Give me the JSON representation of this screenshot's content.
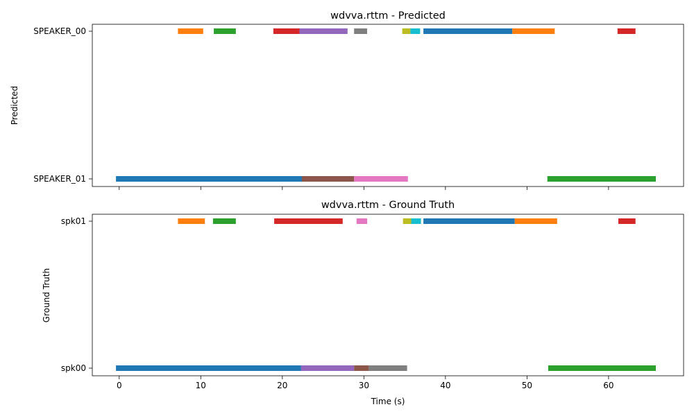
{
  "xlabel": "Time (s)",
  "x_ticks": [
    0,
    10,
    20,
    30,
    40,
    50,
    60
  ],
  "xlim": [
    -3.3,
    69.2
  ],
  "palette": {
    "blue": "#1f77b4",
    "orange": "#ff7f0e",
    "green": "#2ca02c",
    "red": "#d62728",
    "purple": "#9467bd",
    "brown": "#8c564b",
    "pink": "#e377c2",
    "gray": "#7f7f7f",
    "olive": "#bcbd22",
    "cyan": "#17becf"
  },
  "chart_data": [
    {
      "type": "timeline",
      "title": "wdvva.rttm - Predicted",
      "ylabel": "Predicted",
      "speakers": [
        "SPEAKER_00",
        "SPEAKER_01"
      ],
      "segments": [
        {
          "speaker": "SPEAKER_00",
          "start": 7.2,
          "end": 10.3,
          "color": "orange"
        },
        {
          "speaker": "SPEAKER_00",
          "start": 11.6,
          "end": 14.3,
          "color": "green"
        },
        {
          "speaker": "SPEAKER_00",
          "start": 18.9,
          "end": 22.1,
          "color": "red"
        },
        {
          "speaker": "SPEAKER_00",
          "start": 22.1,
          "end": 28.0,
          "color": "purple"
        },
        {
          "speaker": "SPEAKER_00",
          "start": 28.8,
          "end": 30.4,
          "color": "gray"
        },
        {
          "speaker": "SPEAKER_00",
          "start": 34.7,
          "end": 35.7,
          "color": "olive"
        },
        {
          "speaker": "SPEAKER_00",
          "start": 35.7,
          "end": 36.9,
          "color": "cyan"
        },
        {
          "speaker": "SPEAKER_00",
          "start": 37.3,
          "end": 48.2,
          "color": "blue"
        },
        {
          "speaker": "SPEAKER_00",
          "start": 48.2,
          "end": 53.4,
          "color": "orange"
        },
        {
          "speaker": "SPEAKER_00",
          "start": 61.1,
          "end": 63.3,
          "color": "red"
        },
        {
          "speaker": "SPEAKER_01",
          "start": -0.4,
          "end": 22.4,
          "color": "blue"
        },
        {
          "speaker": "SPEAKER_01",
          "start": 22.4,
          "end": 28.8,
          "color": "brown"
        },
        {
          "speaker": "SPEAKER_01",
          "start": 28.8,
          "end": 35.4,
          "color": "pink"
        },
        {
          "speaker": "SPEAKER_01",
          "start": 52.5,
          "end": 65.8,
          "color": "green"
        }
      ]
    },
    {
      "type": "timeline",
      "title": "wdvva.rttm - Ground Truth",
      "ylabel": "Ground Truth",
      "speakers": [
        "spk01",
        "spk00"
      ],
      "segments": [
        {
          "speaker": "spk01",
          "start": 7.2,
          "end": 10.5,
          "color": "orange"
        },
        {
          "speaker": "spk01",
          "start": 11.5,
          "end": 14.3,
          "color": "green"
        },
        {
          "speaker": "spk01",
          "start": 19.0,
          "end": 27.4,
          "color": "red"
        },
        {
          "speaker": "spk01",
          "start": 29.1,
          "end": 30.4,
          "color": "pink"
        },
        {
          "speaker": "spk01",
          "start": 34.8,
          "end": 35.8,
          "color": "olive"
        },
        {
          "speaker": "spk01",
          "start": 35.8,
          "end": 37.0,
          "color": "cyan"
        },
        {
          "speaker": "spk01",
          "start": 37.3,
          "end": 48.5,
          "color": "blue"
        },
        {
          "speaker": "spk01",
          "start": 48.5,
          "end": 53.7,
          "color": "orange"
        },
        {
          "speaker": "spk01",
          "start": 61.2,
          "end": 63.3,
          "color": "red"
        },
        {
          "speaker": "spk00",
          "start": -0.4,
          "end": 22.3,
          "color": "blue"
        },
        {
          "speaker": "spk00",
          "start": 22.3,
          "end": 28.8,
          "color": "purple"
        },
        {
          "speaker": "spk00",
          "start": 28.8,
          "end": 30.6,
          "color": "brown"
        },
        {
          "speaker": "spk00",
          "start": 30.6,
          "end": 35.3,
          "color": "gray"
        },
        {
          "speaker": "spk00",
          "start": 52.6,
          "end": 65.8,
          "color": "green"
        }
      ]
    }
  ]
}
